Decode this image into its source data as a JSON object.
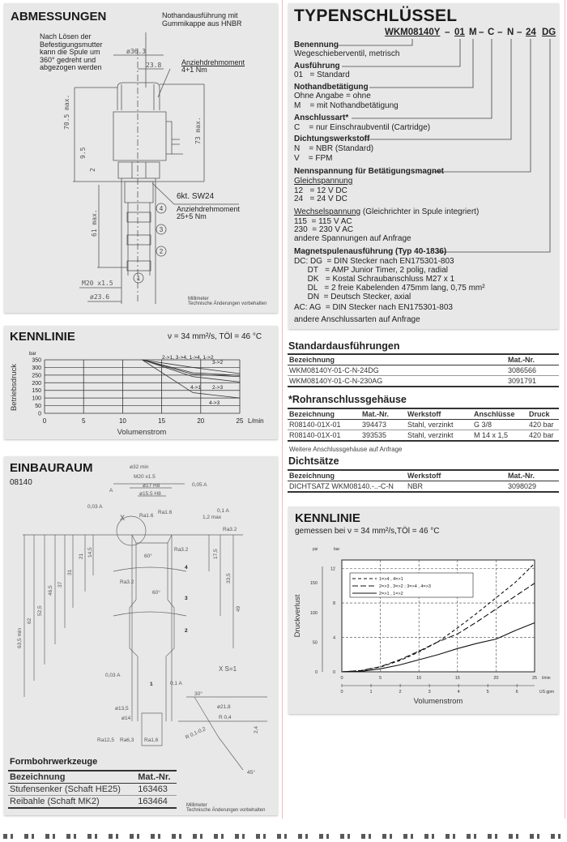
{
  "abmessungen": {
    "title": "ABMESSUNGEN",
    "note_nothand": [
      "Nothandausführung mit",
      "Gummikappe aus HNBR"
    ],
    "note_spule": [
      "Nach Lösen der",
      "Befestigungsmutter",
      "kann die Spule um",
      "360° gedreht und",
      "abgezogen werden"
    ],
    "torque_top": [
      "Anziehdrehmoment",
      "4+1 Nm"
    ],
    "hex": "6kt. SW24",
    "torque_bottom": [
      "Anziehdrehmoment",
      "25+5 Nm"
    ],
    "dims": {
      "d363": "ø36.3",
      "d238": "23.8",
      "h705": "70.5 max.",
      "h95": "9.5",
      "h2": "2",
      "h73": "73 max.",
      "h61": "61 max.",
      "m20": "M20 x1.5",
      "d236": "ø23.6"
    },
    "ports": [
      "1",
      "2",
      "3",
      "4"
    ],
    "footer": [
      "Millimeter",
      "Technische Änderungen vorbehalten"
    ]
  },
  "kennlinie_left": {
    "title": "KENNLINIE",
    "condition": "ν = 34 mm²/s, TÖl = 46 °C"
  },
  "einbauraum": {
    "title": "EINBAURAUM",
    "subtitle": "08140",
    "labels": [
      "ø32 min",
      "M20 x1.5",
      "ø17 H8",
      "ø15.5 H8",
      "0,05 A",
      "0,03 A",
      "A",
      "X",
      "Ra1.6",
      "Ra1.6",
      "Ra3.2",
      "Ra3.2",
      "Ra3.2",
      "1,2 max",
      "0,1 A",
      "60°",
      "60°",
      "4",
      "3",
      "2",
      "1",
      "63,5 min",
      "62",
      "52,5",
      "46,5",
      "37",
      "31",
      "21",
      "14,5",
      "17,5",
      "33,5",
      "49",
      "0,03 A",
      "0,1 A",
      "ø13,5",
      "ø14",
      "X S=1",
      "30°",
      "ø21,8",
      "R 0,4",
      "2,4",
      "R 0,1-0,2",
      "45°",
      "Ra12,5",
      "Ra6,3",
      "Ra1,6"
    ],
    "footer": [
      "Millimeter",
      "Technische Änderungen vorbehalten"
    ],
    "tools": {
      "title": "Formbohrwerkzeuge",
      "headers": [
        "Bezeichnung",
        "Mat.-Nr."
      ],
      "rows": [
        [
          "Stufensenker (Schaft HE25)",
          "163463"
        ],
        [
          "Reibahle (Schaft MK2)",
          "163464"
        ]
      ]
    }
  },
  "typenschluessel": {
    "title": "TYPENSCHLÜSSEL",
    "code": [
      "WKM08140Y",
      "–",
      "01",
      "M",
      "–",
      "C",
      "–",
      "N",
      "–",
      "24",
      "DG"
    ],
    "lines": [
      {
        "text": "Benennung",
        "style": "b"
      },
      {
        "text": "Wegeschieberventil, metrisch"
      },
      {
        "text": "Ausführung",
        "style": "b"
      },
      {
        "text": "01   = Standard"
      },
      {
        "text": "Nothandbetätigung",
        "style": "b"
      },
      {
        "text": "Ohne Angabe = ohne"
      },
      {
        "text": "M    = mit Nothandbetätigung"
      },
      {
        "text": "Anschlussart*",
        "style": "b"
      },
      {
        "text": "C    = nur Einschraubventil (Cartridge)"
      },
      {
        "text": "Dichtungswerkstoff",
        "style": "b"
      },
      {
        "text": "N    = NBR (Standard)"
      },
      {
        "text": "V    = FPM"
      },
      {
        "text": "Nennspannung für Betätigungsmagnet",
        "style": "b"
      },
      {
        "text": "Gleichspannung",
        "style": "u"
      },
      {
        "text": "12   = 12 V DC"
      },
      {
        "text": "24   = 24 V DC"
      },
      {
        "text": "Wechselspannung",
        "style": "u"
      },
      {
        "text": "115  = 115 V AC"
      },
      {
        "text": "230  = 230 V AC"
      },
      {
        "text": "andere Spannungen auf Anfrage"
      },
      {
        "text": "Magnetspulenausführung (Typ 40-1836)",
        "style": "b"
      },
      {
        "text": "DC: DG  = DIN Stecker nach EN175301-803"
      },
      {
        "text": "      DT   = AMP Junior Timer, 2 polig, radial"
      },
      {
        "text": "      DK   = Kostal Schraubanschluss M27 x 1"
      },
      {
        "text": "      DL   = 2 freie Kabelenden 475mm lang, 0,75 mm²"
      },
      {
        "text": "      DN  = Deutsch Stecker, axial"
      },
      {
        "text": "AC: AG  = DIN Stecker nach EN175301-803"
      },
      {
        "text": "andere Anschlussarten auf Anfrage"
      }
    ],
    "wechsel_suffix": " (Gleichrichter in Spule integriert)"
  },
  "standard": {
    "title": "Standardausführungen",
    "headers": [
      "Bezeichnung",
      "Mat.-Nr."
    ],
    "rows": [
      [
        "WKM08140Y-01-C-N-24DG",
        "3086566"
      ],
      [
        "WKM08140Y-01-C-N-230AG",
        "3091791"
      ]
    ]
  },
  "rohr": {
    "title": "*Rohranschlussgehäuse",
    "headers": [
      "Bezeichnung",
      "Mat.-Nr.",
      "Werkstoff",
      "Anschlüsse",
      "Druck"
    ],
    "rows": [
      [
        "R08140-01X-01",
        "394473",
        "Stahl, verzinkt",
        "G 3/8",
        "420 bar"
      ],
      [
        "R08140-01X-01",
        "393535",
        "Stahl, verzinkt",
        "M 14 x 1,5",
        "420 bar"
      ]
    ],
    "note": "Weitere Anschlussgehäuse auf Anfrage"
  },
  "dicht": {
    "title": "Dichtsätze",
    "headers": [
      "Bezeichnung",
      "Werkstoff",
      "Mat.-Nr."
    ],
    "rows": [
      [
        "DICHTSATZ WKM08140.-..-C-N",
        "NBR",
        "3098029"
      ]
    ]
  },
  "kennlinie_right": {
    "title": "KENNLINIE",
    "condition": "gemessen bei ν = 34 mm²/s,TÖl = 46 °C"
  },
  "chart_data": [
    {
      "type": "line",
      "xlabel": "Volumenstrom",
      "ylabel": "Betriebsdruck",
      "x_unit": "L/min",
      "y_unit": "bar",
      "xlim": [
        0,
        25
      ],
      "ylim": [
        0,
        350
      ],
      "xticks": [
        0,
        5,
        10,
        15,
        20,
        25
      ],
      "yticks": [
        0,
        50,
        100,
        150,
        200,
        250,
        300,
        350
      ],
      "grid": true,
      "series": [
        {
          "name": "2->1, 3->4, 1->4, 1->2",
          "points": [
            [
              12.5,
              350
            ],
            [
              19,
              300
            ],
            [
              25,
              260
            ]
          ]
        },
        {
          "name": "3->2",
          "points": [
            [
              12.5,
              350
            ],
            [
              19,
              265
            ],
            [
              25,
              248
            ]
          ]
        },
        {
          "name": "4->1",
          "points": [
            [
              12.5,
              350
            ],
            [
              19,
              255
            ],
            [
              25,
              240
            ]
          ]
        },
        {
          "name": "2->3",
          "points": [
            [
              12.5,
              350
            ],
            [
              19,
              240
            ],
            [
              25,
              205
            ]
          ]
        },
        {
          "name": "4->3",
          "points": [
            [
              12.5,
              350
            ],
            [
              19,
              135
            ],
            [
              25,
              100
            ]
          ]
        }
      ]
    },
    {
      "type": "line",
      "xlabel": "Volumenstrom",
      "ylabel": "Druckverlust",
      "x_unit": "l/min",
      "x2_unit": "US gpm",
      "y_unit": "bar",
      "y2_unit": "psi",
      "xlim": [
        0,
        25
      ],
      "ylim": [
        0,
        13
      ],
      "xticks": [
        0,
        5,
        10,
        15,
        20,
        25
      ],
      "yticks": [
        0,
        4,
        8,
        12
      ],
      "x2ticks": [
        0,
        1,
        2,
        3,
        4,
        5,
        6
      ],
      "y2ticks": [
        0,
        50,
        100,
        150
      ],
      "grid": true,
      "legend": "top-left",
      "series": [
        {
          "name": "1=>4 , 4=>1",
          "style": "short-dash",
          "points": [
            [
              0,
              0
            ],
            [
              2.5,
              0.15
            ],
            [
              5,
              0.55
            ],
            [
              7.5,
              1.3
            ],
            [
              10,
              2.3
            ],
            [
              12.5,
              3.5
            ],
            [
              15,
              5.1
            ],
            [
              17.5,
              6.8
            ],
            [
              20,
              8.6
            ],
            [
              22.5,
              10.4
            ],
            [
              25,
              12.6
            ]
          ]
        },
        {
          "name": "2=>3 , 3=>2 ; 3=>4 , 4=>3",
          "style": "long-dash",
          "points": [
            [
              0,
              0
            ],
            [
              2.5,
              0.15
            ],
            [
              5,
              0.6
            ],
            [
              7.5,
              1.4
            ],
            [
              10,
              2.4
            ],
            [
              12.5,
              3.5
            ],
            [
              15,
              4.4
            ],
            [
              17.5,
              5.8
            ],
            [
              20,
              7.3
            ],
            [
              22.5,
              8.8
            ],
            [
              25,
              10.3
            ]
          ]
        },
        {
          "name": "2=>1 , 1=>2",
          "style": "solid",
          "points": [
            [
              0,
              0
            ],
            [
              2.5,
              0.05
            ],
            [
              5,
              0.35
            ],
            [
              7.5,
              0.8
            ],
            [
              10,
              1.4
            ],
            [
              12.5,
              2.0
            ],
            [
              15,
              2.7
            ],
            [
              17.5,
              3.3
            ],
            [
              20,
              3.8
            ],
            [
              22.5,
              4.8
            ],
            [
              25,
              5.7
            ]
          ]
        }
      ]
    }
  ]
}
